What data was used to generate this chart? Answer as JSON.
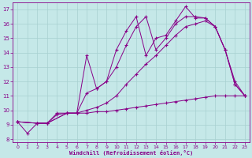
{
  "xlabel": "Windchill (Refroidissement éolien,°C)",
  "xlim": [
    -0.5,
    23.5
  ],
  "ylim": [
    7.8,
    17.5
  ],
  "xticks": [
    0,
    1,
    2,
    3,
    4,
    5,
    6,
    7,
    8,
    9,
    10,
    11,
    12,
    13,
    14,
    15,
    16,
    17,
    18,
    19,
    20,
    21,
    22,
    23
  ],
  "yticks": [
    8,
    9,
    10,
    11,
    12,
    13,
    14,
    15,
    16,
    17
  ],
  "bg_color": "#c5e8e8",
  "line_color": "#880088",
  "grid_color": "#a8d0d0",
  "lines": [
    {
      "x": [
        0,
        1,
        2,
        3,
        4,
        5,
        6,
        7,
        8,
        9,
        10,
        11,
        12,
        13,
        14,
        15,
        16,
        17,
        18,
        19,
        20,
        21,
        22,
        23
      ],
      "y": [
        9.2,
        8.4,
        9.1,
        9.1,
        9.7,
        9.8,
        9.8,
        9.8,
        9.9,
        9.9,
        10.0,
        10.1,
        10.2,
        10.3,
        10.4,
        10.5,
        10.6,
        10.7,
        10.8,
        10.9,
        11.0,
        11.0,
        11.0,
        11.0
      ]
    },
    {
      "x": [
        0,
        2,
        3,
        4,
        5,
        6,
        7,
        8,
        9,
        10,
        11,
        12,
        13,
        14,
        15,
        16,
        17,
        18,
        19,
        20,
        21,
        22,
        23
      ],
      "y": [
        9.2,
        9.1,
        9.1,
        9.8,
        9.8,
        9.8,
        10.0,
        10.2,
        10.5,
        11.0,
        11.8,
        12.5,
        13.2,
        13.8,
        14.5,
        15.2,
        15.8,
        16.0,
        16.2,
        15.8,
        14.2,
        12.0,
        11.0
      ]
    },
    {
      "x": [
        0,
        2,
        3,
        5,
        6,
        7,
        8,
        9,
        10,
        11,
        12,
        13,
        14,
        15,
        16,
        17,
        18,
        19,
        20,
        21,
        22,
        23
      ],
      "y": [
        9.2,
        9.1,
        9.1,
        9.8,
        9.8,
        11.2,
        11.5,
        12.0,
        13.0,
        14.5,
        15.8,
        16.5,
        14.2,
        15.0,
        16.0,
        16.5,
        16.5,
        16.4,
        15.8,
        14.2,
        11.8,
        11.0
      ]
    },
    {
      "x": [
        0,
        2,
        3,
        5,
        6,
        7,
        8,
        9,
        10,
        11,
        12,
        13,
        14,
        15,
        16,
        17,
        18,
        19,
        20,
        21,
        22,
        23
      ],
      "y": [
        9.2,
        9.1,
        9.1,
        9.8,
        9.8,
        13.8,
        11.5,
        12.0,
        14.2,
        15.5,
        16.5,
        13.8,
        15.0,
        15.2,
        16.2,
        17.2,
        16.4,
        16.4,
        15.8,
        14.2,
        11.8,
        11.0
      ]
    }
  ]
}
